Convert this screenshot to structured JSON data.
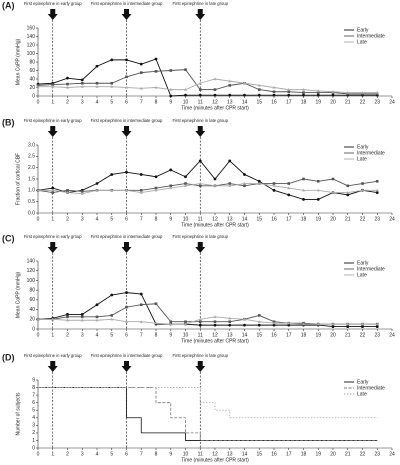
{
  "chart_data": [
    {
      "type": "line",
      "label": "(A)",
      "ylabel": "Mean CoPP (mmHg)",
      "xlabel": "Time (minutes after CPR start)",
      "legend": "upper right",
      "x": [
        0,
        1,
        2,
        3,
        4,
        5,
        6,
        7,
        8,
        9,
        10,
        11,
        12,
        13,
        14,
        15,
        16,
        17,
        18,
        19,
        20,
        21,
        22,
        23
      ],
      "xlim": [
        0,
        24
      ],
      "xticks": [
        0,
        1,
        2,
        3,
        4,
        5,
        6,
        7,
        8,
        9,
        10,
        11,
        12,
        13,
        14,
        15,
        16,
        17,
        18,
        19,
        20,
        21,
        22,
        23,
        24
      ],
      "ylim": [
        0,
        160
      ],
      "yticks": [
        0,
        20,
        40,
        60,
        80,
        100,
        120,
        140,
        160
      ],
      "annotations": [
        {
          "text": "First epinephrine in early group",
          "x": 1
        },
        {
          "text": "First epinephrine in intermediate group",
          "x": 6
        },
        {
          "text": "First epinephrine in late group",
          "x": 11
        }
      ],
      "series": [
        {
          "name": "Early",
          "color": "#111111",
          "marker": "circle",
          "values": [
            28,
            30,
            42,
            38,
            70,
            85,
            85,
            75,
            87,
            0,
            2,
            2,
            2,
            2,
            2,
            2,
            2,
            2,
            2,
            2,
            2,
            2,
            2,
            2
          ]
        },
        {
          "name": "Intermediate",
          "color": "#555555",
          "marker": "square",
          "values": [
            25,
            27,
            28,
            30,
            30,
            30,
            45,
            55,
            58,
            60,
            62,
            15,
            15,
            25,
            30,
            15,
            10,
            10,
            8,
            8,
            8,
            5,
            5,
            5
          ]
        },
        {
          "name": "Late",
          "color": "#aaaaaa",
          "marker": "triangle",
          "values": [
            22,
            22,
            20,
            22,
            22,
            22,
            20,
            18,
            20,
            15,
            15,
            30,
            40,
            35,
            30,
            25,
            20,
            15,
            15,
            12,
            10,
            8,
            8,
            8
          ]
        }
      ]
    },
    {
      "type": "line",
      "label": "(B)",
      "ylabel": "Fraction of cortical CBF",
      "xlabel": "Time (minutes after CPR start)",
      "legend": "upper right",
      "x": [
        0,
        1,
        2,
        3,
        4,
        5,
        6,
        7,
        8,
        9,
        10,
        11,
        12,
        13,
        14,
        15,
        16,
        17,
        18,
        19,
        20,
        21,
        22,
        23
      ],
      "xlim": [
        0,
        24
      ],
      "xticks": [
        0,
        1,
        2,
        3,
        4,
        5,
        6,
        7,
        8,
        9,
        10,
        11,
        12,
        13,
        14,
        15,
        16,
        17,
        18,
        19,
        20,
        21,
        22,
        23,
        24
      ],
      "ylim": [
        0,
        3
      ],
      "yticks": [
        {
          "value": 0,
          "label": "0.0"
        },
        {
          "value": 0.5,
          "label": "0.5"
        },
        {
          "value": 1,
          "label": "1.0"
        },
        {
          "value": 1.5,
          "label": "1.5"
        },
        {
          "value": 2,
          "label": "2.0"
        },
        {
          "value": 2.5,
          "label": "2.5"
        },
        {
          "value": 3,
          "label": "3.0"
        }
      ],
      "annotations": [
        {
          "text": "First epinephrine in early group",
          "x": 1
        },
        {
          "text": "First epinephrine in intermediate group",
          "x": 6
        },
        {
          "text": "First epinephrine in late group",
          "x": 11
        }
      ],
      "series": [
        {
          "name": "Early",
          "color": "#111111",
          "marker": "circle",
          "values": [
            1.0,
            1.1,
            0.9,
            1.0,
            1.3,
            1.7,
            1.8,
            1.7,
            1.6,
            1.9,
            1.6,
            2.3,
            1.5,
            2.3,
            1.7,
            1.4,
            1.0,
            0.8,
            0.6,
            0.6,
            0.9,
            0.8,
            1.0,
            0.9
          ]
        },
        {
          "name": "Intermediate",
          "color": "#555555",
          "marker": "square",
          "values": [
            1.0,
            0.9,
            1.0,
            0.95,
            1.0,
            1.0,
            1.0,
            1.0,
            1.1,
            1.2,
            1.3,
            1.2,
            1.2,
            1.3,
            1.2,
            1.3,
            1.3,
            1.3,
            1.5,
            1.4,
            1.5,
            1.2,
            1.3,
            1.4
          ]
        },
        {
          "name": "Late",
          "color": "#aaaaaa",
          "marker": "triangle",
          "values": [
            1.0,
            1.0,
            0.9,
            0.85,
            1.0,
            1.0,
            1.0,
            0.9,
            1.0,
            1.1,
            1.2,
            1.3,
            1.2,
            1.2,
            1.3,
            1.3,
            1.2,
            1.1,
            1.0,
            1.0,
            0.9,
            0.9,
            1.0,
            1.0
          ]
        }
      ]
    },
    {
      "type": "line",
      "label": "(C)",
      "ylabel": "Mean CoPP (mmHg)",
      "xlabel": "Time (minutes after CPR start)",
      "legend": "upper right",
      "x": [
        0,
        1,
        2,
        3,
        4,
        5,
        6,
        7,
        8,
        9,
        10,
        11,
        12,
        13,
        14,
        15,
        16,
        17,
        18,
        19,
        20,
        21,
        22,
        23
      ],
      "xlim": [
        0,
        24
      ],
      "xticks": [
        0,
        1,
        2,
        3,
        4,
        5,
        6,
        7,
        8,
        9,
        10,
        11,
        12,
        13,
        14,
        15,
        16,
        17,
        18,
        19,
        20,
        21,
        22,
        23,
        24
      ],
      "ylim": [
        0,
        140
      ],
      "yticks": [
        0,
        20,
        40,
        60,
        80,
        100,
        120,
        140
      ],
      "annotations": [
        {
          "text": "First epinephrine in early group",
          "x": 1
        },
        {
          "text": "First epinephrine in intermediate group",
          "x": 6
        },
        {
          "text": "First epinephrine in late group",
          "x": 11
        }
      ],
      "series": [
        {
          "name": "Early",
          "color": "#111111",
          "marker": "circle",
          "values": [
            20,
            22,
            30,
            30,
            50,
            70,
            75,
            72,
            10,
            10,
            10,
            8,
            8,
            8,
            8,
            8,
            8,
            8,
            8,
            8,
            5,
            5,
            5,
            5
          ]
        },
        {
          "name": "Intermediate",
          "color": "#555555",
          "marker": "square",
          "values": [
            20,
            20,
            25,
            25,
            25,
            28,
            45,
            50,
            52,
            15,
            15,
            15,
            15,
            15,
            20,
            28,
            15,
            12,
            12,
            10,
            10,
            10,
            10,
            10
          ]
        },
        {
          "name": "Late",
          "color": "#aaaaaa",
          "marker": "triangle",
          "values": [
            20,
            20,
            18,
            18,
            18,
            20,
            15,
            15,
            12,
            10,
            10,
            20,
            25,
            22,
            20,
            15,
            12,
            12,
            10,
            10,
            10,
            10,
            10,
            10
          ]
        }
      ]
    },
    {
      "type": "step",
      "label": "(D)",
      "ylabel": "Number of subjects",
      "xlabel": "Time (minutes after CPR start)",
      "legend": "upper right",
      "x": [
        0,
        1,
        2,
        3,
        4,
        5,
        6,
        7,
        8,
        9,
        10,
        11,
        12,
        13,
        14,
        15,
        16,
        17,
        18,
        19,
        20,
        21,
        22,
        23
      ],
      "xlim": [
        0,
        24
      ],
      "xticks": [
        0,
        1,
        2,
        3,
        4,
        5,
        6,
        7,
        8,
        9,
        10,
        11,
        12,
        13,
        14,
        15,
        16,
        17,
        18,
        19,
        20,
        21,
        22,
        23,
        24
      ],
      "ylim": [
        0,
        9
      ],
      "yticks": [
        0,
        1,
        2,
        3,
        4,
        5,
        6,
        7,
        8,
        9
      ],
      "annotations": [
        {
          "text": "First epinephrine in early group",
          "x": 1
        },
        {
          "text": "First epinephrine in intermediate group",
          "x": 6
        },
        {
          "text": "First epinephrine in late group",
          "x": 11
        }
      ],
      "series": [
        {
          "name": "Early",
          "color": "#111111",
          "values": [
            8,
            8,
            8,
            8,
            8,
            8,
            4,
            2,
            2,
            2,
            1,
            1,
            1,
            1,
            1,
            1,
            1,
            1,
            1,
            1,
            1,
            1,
            1,
            1
          ]
        },
        {
          "name": "Intermediate",
          "color": "#777777",
          "values": [
            8,
            8,
            8,
            8,
            8,
            8,
            8,
            8,
            6,
            4,
            2,
            1,
            1,
            1,
            1,
            1,
            1,
            1,
            1,
            1,
            1,
            1,
            1,
            1
          ]
        },
        {
          "name": "Late",
          "color": "#aaaaaa",
          "values": [
            8,
            8,
            8,
            8,
            8,
            8,
            8,
            8,
            8,
            8,
            8,
            6,
            5,
            4,
            4,
            4,
            4,
            4,
            4,
            4,
            4,
            4,
            4,
            4
          ]
        }
      ]
    }
  ]
}
